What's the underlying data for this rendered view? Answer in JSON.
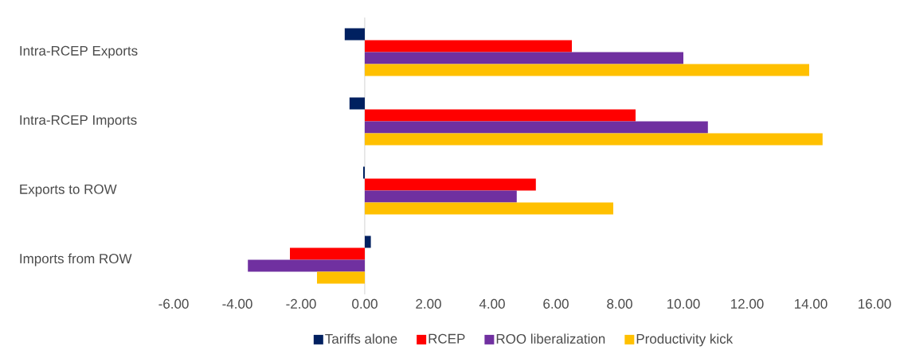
{
  "chart_data": {
    "type": "bar",
    "orientation": "horizontal",
    "categories": [
      "Intra-RCEP Exports",
      "Intra-RCEP Imports",
      "Exports to ROW",
      "Imports from ROW"
    ],
    "series": [
      {
        "name": "Tariffs alone",
        "color": "#002060",
        "values": [
          -0.63,
          -0.48,
          -0.05,
          0.19
        ]
      },
      {
        "name": "RCEP",
        "color": "#ff0000",
        "values": [
          6.5,
          8.5,
          5.37,
          -2.35
        ]
      },
      {
        "name": "ROO liberalization",
        "color": "#7030a0",
        "values": [
          10.0,
          10.77,
          4.77,
          -3.67
        ]
      },
      {
        "name": "Productivity kick",
        "color": "#ffc000",
        "values": [
          13.95,
          14.37,
          7.8,
          -1.5
        ]
      }
    ],
    "xlim": [
      -6,
      16
    ],
    "xticks": [
      {
        "value": -6,
        "label": "-6.00"
      },
      {
        "value": -4,
        "label": "-4.00"
      },
      {
        "value": -2,
        "label": "-2.00"
      },
      {
        "value": 0,
        "label": "0.00"
      },
      {
        "value": 2,
        "label": "2.00"
      },
      {
        "value": 4,
        "label": "4.00"
      },
      {
        "value": 6,
        "label": "6.00"
      },
      {
        "value": 8,
        "label": "8.00"
      },
      {
        "value": 10,
        "label": "10.00"
      },
      {
        "value": 12,
        "label": "12.00"
      },
      {
        "value": 14,
        "label": "14.00"
      },
      {
        "value": 16,
        "label": "16.00"
      }
    ],
    "legend": "bottom"
  }
}
